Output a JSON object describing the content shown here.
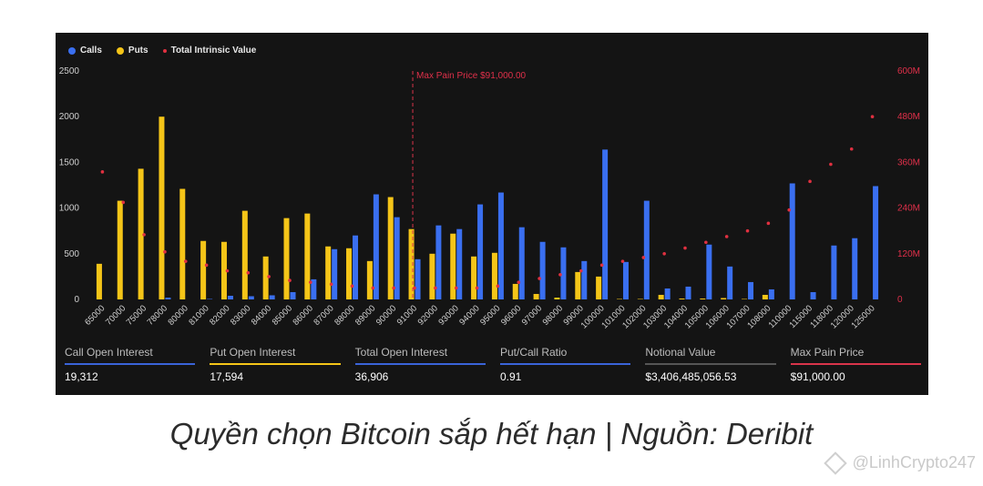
{
  "chart_data": {
    "type": "bar",
    "legend": [
      "Calls",
      "Puts",
      "Total Intrinsic Value"
    ],
    "categories": [
      "65000",
      "70000",
      "75000",
      "78000",
      "80000",
      "81000",
      "82000",
      "83000",
      "84000",
      "85000",
      "86000",
      "87000",
      "88000",
      "89000",
      "90000",
      "91000",
      "92000",
      "93000",
      "94000",
      "95000",
      "96000",
      "97000",
      "98000",
      "99000",
      "100000",
      "101000",
      "102000",
      "103000",
      "104000",
      "105000",
      "106000",
      "107000",
      "108000",
      "110000",
      "115000",
      "118000",
      "120000",
      "125000"
    ],
    "series": [
      {
        "name": "Calls",
        "color": "#3a6ff0",
        "values": [
          0,
          0,
          0,
          20,
          0,
          5,
          40,
          35,
          45,
          80,
          220,
          550,
          700,
          1150,
          900,
          440,
          810,
          770,
          1040,
          1170,
          790,
          630,
          570,
          420,
          1640,
          410,
          1080,
          120,
          140,
          600,
          360,
          190,
          110,
          1270,
          80,
          590,
          670,
          1240
        ]
      },
      {
        "name": "Puts",
        "color": "#f5c518",
        "values": [
          390,
          1080,
          1430,
          2000,
          1210,
          640,
          630,
          970,
          470,
          890,
          940,
          580,
          560,
          420,
          1120,
          770,
          500,
          720,
          470,
          510,
          170,
          60,
          20,
          300,
          250,
          5,
          5,
          50,
          10,
          10,
          15,
          5,
          50,
          0,
          0,
          0,
          0,
          0
        ]
      },
      {
        "name": "Total Intrinsic Value",
        "color": "#e03040",
        "values": [
          335,
          255,
          170,
          125,
          100,
          90,
          75,
          70,
          60,
          50,
          45,
          40,
          35,
          30,
          30,
          30,
          30,
          30,
          30,
          35,
          45,
          55,
          65,
          75,
          90,
          100,
          110,
          120,
          135,
          150,
          165,
          180,
          200,
          235,
          310,
          355,
          395,
          480
        ]
      }
    ],
    "y_left": {
      "min": 0,
      "max": 2500,
      "ticks": [
        "0",
        "500",
        "1000",
        "1500",
        "2000",
        "2500"
      ]
    },
    "y_right": {
      "min": 0,
      "max": 600,
      "ticks": [
        "0",
        "120M",
        "240M",
        "360M",
        "480M",
        "600M"
      ]
    },
    "max_pain": {
      "category": "91000",
      "label": "Max Pain Price $91,000.00"
    },
    "legend_position": "top-left",
    "grid": false
  },
  "stats": [
    {
      "label": "Call Open Interest",
      "value": "19,312",
      "color": "#3a64d8"
    },
    {
      "label": "Put Open Interest",
      "value": "17,594",
      "color": "#f5c518"
    },
    {
      "label": "Total Open Interest",
      "value": "36,906",
      "color": "#3a64d8"
    },
    {
      "label": "Put/Call Ratio",
      "value": "0.91",
      "color": "#3a64d8"
    },
    {
      "label": "Notional Value",
      "value": "$3,406,485,056.53",
      "color": "#555555"
    },
    {
      "label": "Max Pain Price",
      "value": "$91,000.00",
      "color": "#d8344a"
    }
  ],
  "caption": "Quyền chọn Bitcoin sắp hết hạn | Nguồn: Deribit",
  "watermark": "@LinhCrypto247"
}
